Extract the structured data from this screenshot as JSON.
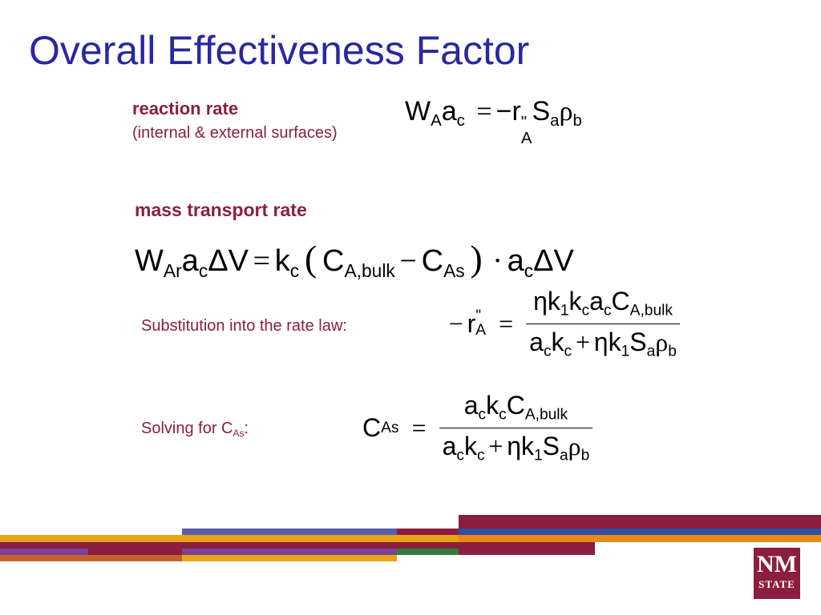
{
  "title": "Overall Effectiveness Factor",
  "labels": {
    "reaction_rate": "reaction rate",
    "reaction_note": "(internal & external surfaces)",
    "mass_transport": "mass transport rate",
    "substitution": "Substitution into the rate law:",
    "solving": [
      "Solving for C",
      "As",
      ":"
    ]
  },
  "equations": [
    {
      "parts": [
        "W",
        "A",
        "a",
        "c",
        "=",
        "−r",
        "\"",
        "A",
        "S",
        "a",
        "ρ",
        "b"
      ]
    },
    {
      "parts": [
        "W",
        "Ar",
        "a",
        "c",
        "ΔV",
        "=",
        "k",
        "c",
        "(",
        "C",
        "A,bulk",
        "−",
        "C",
        "As",
        ")",
        "·",
        "a",
        "c",
        "ΔV"
      ]
    },
    {
      "lhs": [
        "−",
        "r",
        "\"",
        "A",
        "="
      ],
      "numerator": [
        "ηk",
        "1",
        "k",
        "c",
        "a",
        "c",
        "C",
        "A,bulk"
      ],
      "denominator": [
        "a",
        "c",
        "k",
        "c",
        "+",
        "ηk",
        "1",
        "S",
        "a",
        "ρ",
        "b"
      ]
    },
    {
      "lhs": [
        "C",
        "As",
        "="
      ],
      "numerator": [
        "a",
        "c",
        "k",
        "c",
        "C",
        "A,bulk"
      ],
      "denominator": [
        "a",
        "c",
        "k",
        "c",
        "+",
        "ηk",
        "1",
        "S",
        "a",
        "ρ",
        "b"
      ]
    }
  ],
  "logo": [
    "NM",
    "STATE"
  ]
}
